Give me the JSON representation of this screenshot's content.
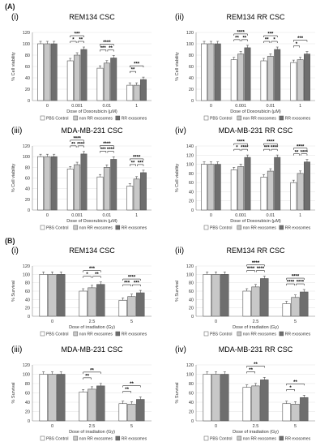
{
  "section_a_label": "(A)",
  "section_b_label": "(B)",
  "colors": {
    "pbs": "#ffffff",
    "nonrr": "#c8c8c8",
    "rr": "#6e6e6e",
    "stroke": "#555555"
  },
  "chart_data": [
    {
      "type": "bar",
      "section": "A",
      "roman": "(i)",
      "title": "REM134 CSC",
      "xlabel": "Dose of Doxorubicin (μM)",
      "ylabel": "% Cell viability",
      "categories": [
        "0",
        "0.001",
        "0.01",
        "1"
      ],
      "ylim": [
        0,
        120
      ],
      "yticks": [
        0,
        20,
        40,
        60,
        80,
        100,
        120
      ],
      "series": [
        {
          "name": "PBS Control",
          "values": [
            100,
            70,
            57,
            27
          ]
        },
        {
          "name": "non RR exosomes",
          "values": [
            100,
            80,
            66,
            27
          ]
        },
        {
          "name": "RR exosomes",
          "values": [
            100,
            90,
            75,
            37
          ]
        }
      ],
      "sig": [
        [
          "***",
          "*",
          "**"
        ],
        [
          "****",
          "***",
          "**"
        ],
        [
          "***",
          "**"
        ]
      ]
    },
    {
      "type": "bar",
      "section": "A",
      "roman": "(ii)",
      "title": "REM134 RR CSC",
      "xlabel": "Dose of Doxorubicin (μM)",
      "ylabel": "% Cell viability",
      "categories": [
        "0",
        "0.001",
        "0.01",
        "1"
      ],
      "ylim": [
        0,
        120
      ],
      "yticks": [
        0,
        20,
        40,
        60,
        80,
        100,
        120
      ],
      "series": [
        {
          "name": "PBS Control",
          "values": [
            100,
            72,
            70,
            67
          ]
        },
        {
          "name": "non RR exosomes",
          "values": [
            100,
            82,
            78,
            72
          ]
        },
        {
          "name": "RR exosomes",
          "values": [
            100,
            93,
            90,
            82
          ]
        }
      ],
      "sig": [
        [
          "****",
          "**",
          "**"
        ],
        [
          "***",
          "**",
          "*"
        ],
        [
          "***",
          "*"
        ]
      ]
    },
    {
      "type": "bar",
      "section": "A",
      "roman": "(iii)",
      "title": "MDA-MB-231 CSC",
      "xlabel": "Dose of Doxorubicin (μM)",
      "ylabel": "% Cell viability",
      "categories": [
        "0",
        "0.001",
        "0.01",
        "1"
      ],
      "ylim": [
        0,
        120
      ],
      "yticks": [
        0,
        20,
        40,
        60,
        80,
        100,
        120
      ],
      "series": [
        {
          "name": "PBS Control",
          "values": [
            100,
            77,
            62,
            45
          ]
        },
        {
          "name": "non RR exosomes",
          "values": [
            100,
            85,
            80,
            58
          ]
        },
        {
          "name": "RR exosomes",
          "values": [
            100,
            105,
            95,
            70
          ]
        }
      ],
      "sig": [
        [
          "****",
          "**",
          "****"
        ],
        [
          "****",
          "***",
          "****"
        ],
        [
          "****",
          "**",
          "***"
        ]
      ]
    },
    {
      "type": "bar",
      "section": "A",
      "roman": "(iv)",
      "title": "MDA-MB-231 RR CSC",
      "xlabel": "Dose of Doxorubicin (μM)",
      "ylabel": "% Cell viability",
      "categories": [
        "0",
        "0.001",
        "0.01",
        "1"
      ],
      "ylim": [
        0,
        140
      ],
      "yticks": [
        0,
        20,
        40,
        60,
        80,
        100,
        120,
        140
      ],
      "series": [
        {
          "name": "PBS Control",
          "values": [
            100,
            88,
            72,
            60
          ]
        },
        {
          "name": "non RR exosomes",
          "values": [
            100,
            95,
            85,
            80
          ]
        },
        {
          "name": "RR exosomes",
          "values": [
            100,
            115,
            115,
            105
          ]
        }
      ],
      "sig": [
        [
          "****",
          "*",
          "****"
        ],
        [
          "****",
          "***",
          "****"
        ],
        [
          "****",
          "**",
          "****"
        ]
      ]
    },
    {
      "type": "bar",
      "section": "B",
      "roman": "(i)",
      "title": "REM134 CSC",
      "xlabel": "Dose of irradiation (Gy)",
      "ylabel": "% Survival",
      "categories": [
        "0",
        "2.5",
        "5"
      ],
      "ylim": [
        0,
        120
      ],
      "yticks": [
        0,
        20,
        40,
        60,
        80,
        100,
        120
      ],
      "series": [
        {
          "name": "PBS Control",
          "values": [
            100,
            60,
            38
          ]
        },
        {
          "name": "non RR exosomes",
          "values": [
            100,
            68,
            47
          ]
        },
        {
          "name": "RR exosomes",
          "values": [
            100,
            76,
            56
          ]
        }
      ],
      "sig": [
        [
          "***",
          "*",
          "**"
        ],
        [
          "****",
          "***",
          "***"
        ]
      ]
    },
    {
      "type": "bar",
      "section": "B",
      "roman": "(ii)",
      "title": "REM134 RR CSC",
      "xlabel": "Dose of irradiation (Gy)",
      "ylabel": "% Survival",
      "categories": [
        "0",
        "2.5",
        "5"
      ],
      "ylim": [
        0,
        120
      ],
      "yticks": [
        0,
        20,
        40,
        60,
        80,
        100,
        120
      ],
      "series": [
        {
          "name": "PBS Control",
          "values": [
            100,
            60,
            30
          ]
        },
        {
          "name": "non RR exosomes",
          "values": [
            100,
            70,
            45
          ]
        },
        {
          "name": "RR exosomes",
          "values": [
            100,
            90,
            58
          ]
        }
      ],
      "sig": [
        [
          "****",
          "****",
          "****"
        ],
        [
          "****",
          "****",
          "****"
        ]
      ]
    },
    {
      "type": "bar",
      "section": "B",
      "roman": "(iii)",
      "title": "MDA-MB-231 CSC",
      "xlabel": "Dose of irradiation (Gy)",
      "ylabel": "% Survival",
      "categories": [
        "0",
        "2.5",
        "5"
      ],
      "ylim": [
        0,
        120
      ],
      "yticks": [
        0,
        20,
        40,
        60,
        80,
        100,
        120
      ],
      "series": [
        {
          "name": "PBS Control",
          "values": [
            100,
            62,
            37
          ]
        },
        {
          "name": "non RR exosomes",
          "values": [
            100,
            68,
            36
          ]
        },
        {
          "name": "RR exosomes",
          "values": [
            100,
            75,
            46
          ]
        }
      ],
      "sig": [
        [
          "**",
          "**"
        ],
        [
          "**",
          "**"
        ]
      ]
    },
    {
      "type": "bar",
      "section": "B",
      "roman": "(iv)",
      "title": "MDA-MB-231 RR CSC",
      "xlabel": "Dose of irradiation (Gy)",
      "ylabel": "% Survival",
      "categories": [
        "0",
        "2.5",
        "5"
      ],
      "ylim": [
        0,
        120
      ],
      "yticks": [
        0,
        20,
        40,
        60,
        80,
        100,
        120
      ],
      "series": [
        {
          "name": "PBS Control",
          "values": [
            100,
            72,
            37
          ]
        },
        {
          "name": "non RR exosomes",
          "values": [
            100,
            75,
            36
          ]
        },
        {
          "name": "RR exosomes",
          "values": [
            100,
            88,
            50
          ]
        }
      ],
      "sig": [
        [
          "**",
          "**"
        ],
        [
          "**",
          "*"
        ]
      ]
    }
  ]
}
